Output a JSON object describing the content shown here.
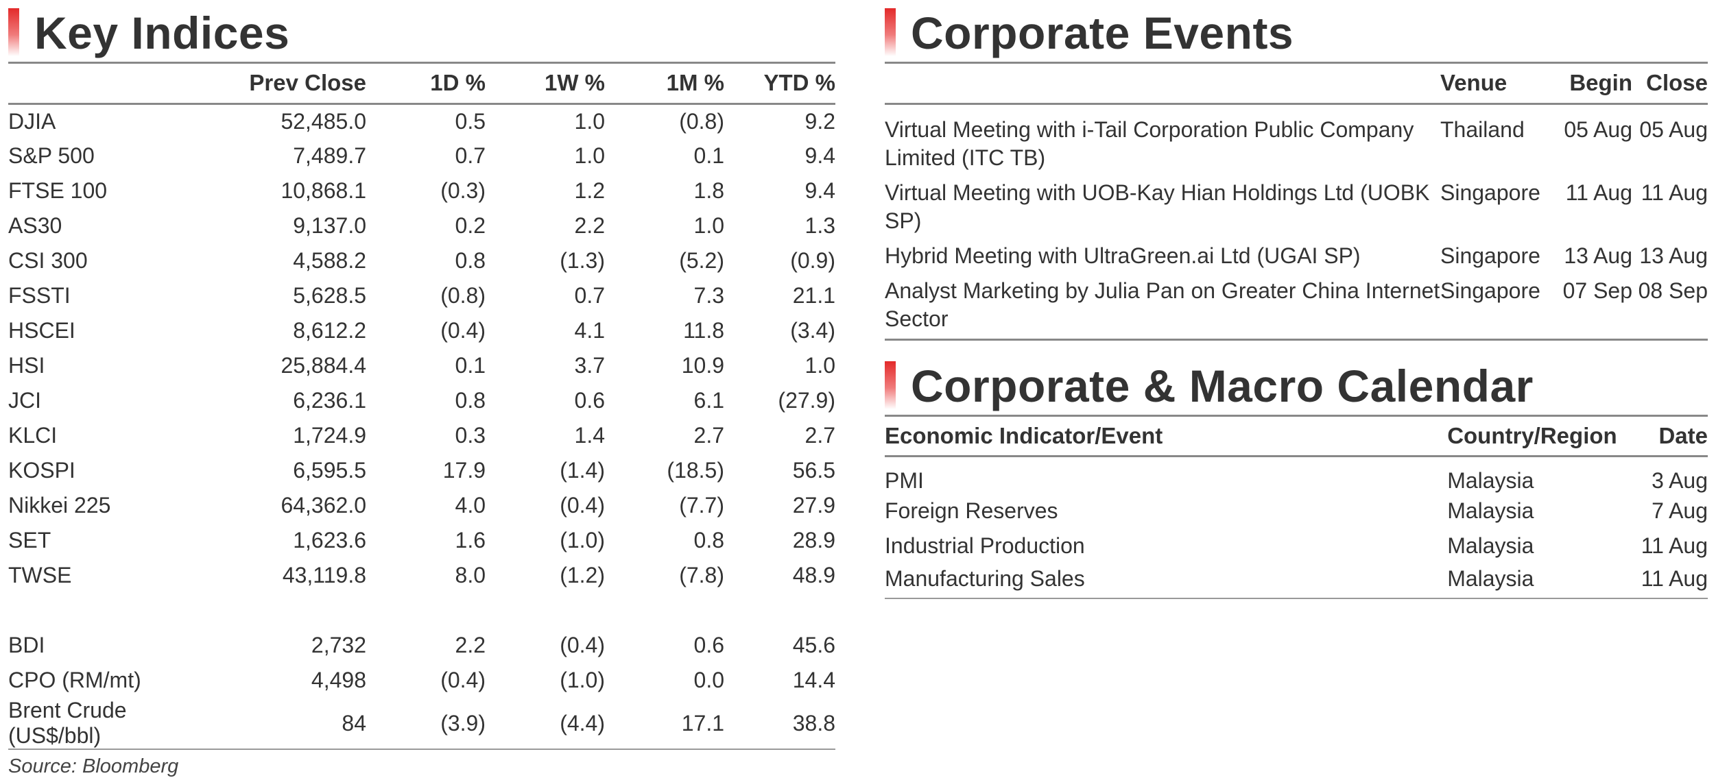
{
  "key_indices": {
    "title": "Key Indices",
    "columns": [
      "",
      "Prev Close",
      "1D %",
      "1W %",
      "1M %",
      "YTD %"
    ],
    "rows": [
      [
        "DJIA",
        "52,485.0",
        "0.5",
        "1.0",
        "(0.8)",
        "9.2"
      ],
      [
        "S&P 500",
        "7,489.7",
        "0.7",
        "1.0",
        "0.1",
        "9.4"
      ],
      [
        "FTSE 100",
        "10,868.1",
        "(0.3)",
        "1.2",
        "1.8",
        "9.4"
      ],
      [
        "AS30",
        "9,137.0",
        "0.2",
        "2.2",
        "1.0",
        "1.3"
      ],
      [
        "CSI 300",
        "4,588.2",
        "0.8",
        "(1.3)",
        "(5.2)",
        "(0.9)"
      ],
      [
        "FSSTI",
        "5,628.5",
        "(0.8)",
        "0.7",
        "7.3",
        "21.1"
      ],
      [
        "HSCEI",
        "8,612.2",
        "(0.4)",
        "4.1",
        "11.8",
        "(3.4)"
      ],
      [
        "HSI",
        "25,884.4",
        "0.1",
        "3.7",
        "10.9",
        "1.0"
      ],
      [
        "JCI",
        "6,236.1",
        "0.8",
        "0.6",
        "6.1",
        "(27.9)"
      ],
      [
        "KLCI",
        "1,724.9",
        "0.3",
        "1.4",
        "2.7",
        "2.7"
      ],
      [
        "KOSPI",
        "6,595.5",
        "17.9",
        "(1.4)",
        "(18.5)",
        "56.5"
      ],
      [
        "Nikkei 225",
        "64,362.0",
        "4.0",
        "(0.4)",
        "(7.7)",
        "27.9"
      ],
      [
        "SET",
        "1,623.6",
        "1.6",
        "(1.0)",
        "0.8",
        "28.9"
      ],
      [
        "TWSE",
        "43,119.8",
        "8.0",
        "(1.2)",
        "(7.8)",
        "48.9"
      ]
    ],
    "commodities": [
      [
        "BDI",
        "2,732",
        "2.2",
        "(0.4)",
        "0.6",
        "45.6"
      ],
      [
        "CPO (RM/mt)",
        "4,498",
        "(0.4)",
        "(1.0)",
        "0.0",
        "14.4"
      ],
      [
        "Brent Crude (US$/bbl)",
        "84",
        "(3.9)",
        "(4.4)",
        "17.1",
        "38.8"
      ]
    ],
    "source": "Source: Bloomberg"
  },
  "corporate_events": {
    "title": "Corporate Events",
    "columns": [
      "",
      "Venue",
      "Begin",
      "Close"
    ],
    "rows": [
      [
        "Virtual Meeting with i-Tail Corporation Public Company Limited (ITC TB)",
        "Thailand",
        "05 Aug",
        "05 Aug"
      ],
      [
        "Virtual Meeting with UOB-Kay Hian Holdings Ltd (UOBK SP)",
        "Singapore",
        "11 Aug",
        "11 Aug"
      ],
      [
        "Hybrid Meeting with UltraGreen.ai Ltd (UGAI SP)",
        "Singapore",
        "13 Aug",
        "13 Aug"
      ],
      [
        "Analyst Marketing by Julia Pan on Greater China Internet Sector",
        "Singapore",
        "07 Sep",
        "08 Sep"
      ]
    ]
  },
  "calendar": {
    "title": "Corporate & Macro Calendar",
    "columns": [
      "Economic Indicator/Event",
      "Country/Region",
      "Date"
    ],
    "rows": [
      [
        "PMI",
        "Malaysia",
        "3 Aug"
      ],
      [
        "Foreign Reserves",
        "Malaysia",
        "7 Aug"
      ],
      [
        "Industrial Production",
        "Malaysia",
        "11 Aug"
      ],
      [
        "Manufacturing Sales",
        "Malaysia",
        "11 Aug"
      ]
    ]
  },
  "accent_color": "#e32a2a"
}
